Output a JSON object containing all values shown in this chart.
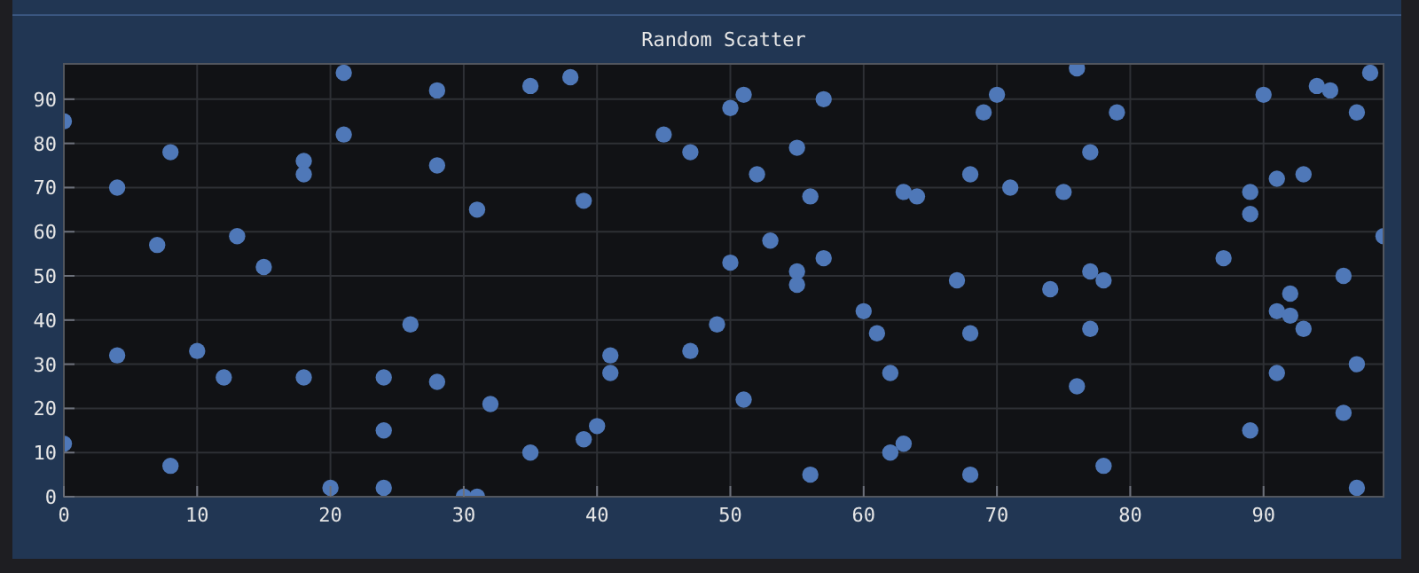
{
  "chart_data": {
    "type": "scatter",
    "title": "Random Scatter",
    "color": "#4f78b8",
    "marker": "circle",
    "grid": true,
    "x": [
      0,
      0,
      4,
      4,
      7,
      8,
      8,
      10,
      12,
      13,
      15,
      18,
      18,
      18,
      20,
      21,
      21,
      24,
      24,
      24,
      26,
      28,
      28,
      28,
      30,
      31,
      31,
      35,
      38,
      39,
      32,
      35,
      39,
      40,
      41,
      41,
      45,
      47,
      47,
      49,
      50,
      51,
      50,
      52,
      53,
      55,
      55,
      55,
      56,
      57,
      57,
      51,
      56,
      60,
      61,
      62,
      62,
      63,
      63,
      64,
      70,
      69,
      76,
      79,
      77,
      68,
      71,
      75,
      67,
      77,
      78,
      74,
      68,
      77,
      76,
      78,
      68,
      90,
      94,
      95,
      98,
      97,
      91,
      93,
      89,
      89,
      99,
      87,
      96,
      92,
      91,
      92,
      93,
      97,
      91,
      96,
      89,
      97
    ],
    "values": [
      85,
      12,
      70,
      32,
      57,
      78,
      7,
      33,
      27,
      59,
      52,
      76,
      73,
      27,
      2,
      96,
      82,
      27,
      15,
      2,
      39,
      92,
      75,
      26,
      0,
      0,
      65,
      93,
      95,
      67,
      21,
      10,
      13,
      16,
      32,
      28,
      82,
      78,
      33,
      39,
      88,
      91,
      53,
      73,
      58,
      79,
      51,
      48,
      68,
      90,
      54,
      22,
      5,
      42,
      37,
      28,
      10,
      12,
      69,
      68,
      91,
      87,
      97,
      87,
      78,
      73,
      70,
      69,
      49,
      51,
      49,
      47,
      37,
      38,
      25,
      7,
      5,
      91,
      93,
      92,
      96,
      87,
      72,
      73,
      69,
      64,
      59,
      54,
      50,
      46,
      42,
      41,
      38,
      30,
      28,
      19,
      15,
      2
    ],
    "xlim": [
      0,
      99
    ],
    "ylim": [
      0,
      98
    ],
    "xticks": [
      0,
      10,
      20,
      30,
      40,
      50,
      60,
      70,
      80,
      90
    ],
    "yticks": [
      0,
      10,
      20,
      30,
      40,
      50,
      60,
      70,
      80,
      90
    ]
  }
}
